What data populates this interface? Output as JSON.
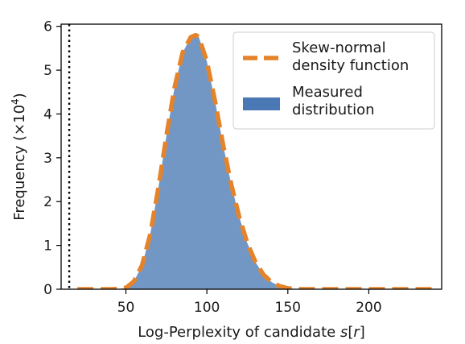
{
  "chart_data": {
    "type": "area",
    "xlabel": "Log-Perplexity of candidate s[r]",
    "xlabel_parts": {
      "prefix": "Log-Perplexity of candidate ",
      "symbol": "s",
      "open": "[",
      "index": "r",
      "close": "]"
    },
    "ylabel": "Frequency (×10⁴)",
    "ylabel_parts": {
      "prefix": "Frequency (×10",
      "exponent": "4",
      "suffix": ")"
    },
    "xlim": [
      10,
      245
    ],
    "ylim": [
      0,
      6.05
    ],
    "x_ticks": [
      50,
      100,
      150,
      200
    ],
    "y_ticks": [
      0,
      1,
      2,
      3,
      4,
      5,
      6
    ],
    "grid": false,
    "legend": {
      "placement": "top-right",
      "entries": [
        {
          "line1": "Skew-normal",
          "line2": "density function",
          "style": "dashed-line",
          "color": "#e5832a"
        },
        {
          "line1": "Measured",
          "line2": "distribution",
          "style": "patch",
          "color": "#4a78b5"
        }
      ]
    },
    "vline": {
      "x": 15,
      "style": "dotted",
      "color": "#000000"
    },
    "series": [
      {
        "name": "Measured distribution",
        "kind": "histogram-area",
        "color": "#7397c4",
        "x": [
          45,
          50,
          55,
          60,
          65,
          70,
          75,
          80,
          85,
          90,
          93,
          95,
          100,
          105,
          110,
          115,
          120,
          125,
          130,
          135,
          140,
          145,
          150,
          155,
          160
        ],
        "values": [
          0,
          0.03,
          0.18,
          0.55,
          1.25,
          2.3,
          3.5,
          4.6,
          5.4,
          5.75,
          5.8,
          5.76,
          5.2,
          4.3,
          3.3,
          2.4,
          1.65,
          1.05,
          0.62,
          0.33,
          0.16,
          0.07,
          0.02,
          0.005,
          0
        ]
      },
      {
        "name": "Skew-normal density function",
        "kind": "dashed-line",
        "color": "#e5832a",
        "x": [
          20,
          30,
          40,
          45,
          50,
          55,
          60,
          65,
          70,
          75,
          80,
          85,
          90,
          93,
          95,
          100,
          105,
          110,
          115,
          120,
          125,
          130,
          135,
          140,
          145,
          150,
          155,
          160,
          170,
          180,
          200,
          220,
          240
        ],
        "values": [
          0,
          0,
          0,
          0.005,
          0.03,
          0.18,
          0.55,
          1.25,
          2.3,
          3.5,
          4.6,
          5.4,
          5.75,
          5.8,
          5.76,
          5.2,
          4.3,
          3.3,
          2.4,
          1.65,
          1.05,
          0.62,
          0.33,
          0.16,
          0.07,
          0.02,
          0.005,
          0,
          0,
          0,
          0,
          0,
          0
        ]
      }
    ]
  }
}
